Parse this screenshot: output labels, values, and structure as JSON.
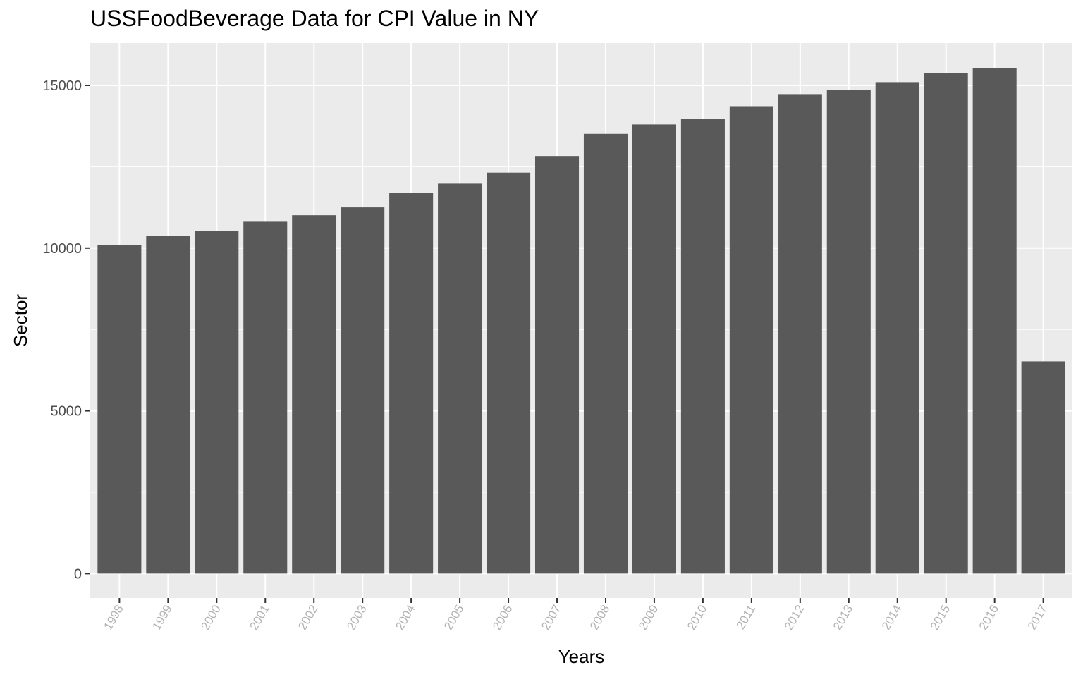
{
  "chart_data": {
    "type": "bar",
    "title": "USSFoodBeverage Data for CPI Value in NY",
    "xlabel": "Years",
    "ylabel": "Sector",
    "categories": [
      "1998",
      "1999",
      "2000",
      "2001",
      "2002",
      "2003",
      "2004",
      "2005",
      "2006",
      "2007",
      "2008",
      "2009",
      "2010",
      "2011",
      "2012",
      "2013",
      "2014",
      "2015",
      "2016",
      "2017"
    ],
    "values": [
      10100,
      10380,
      10530,
      10810,
      11010,
      11250,
      11690,
      11980,
      12320,
      12830,
      13510,
      13800,
      13960,
      14340,
      14710,
      14860,
      15100,
      15380,
      15520,
      6520
    ],
    "yticks": [
      0,
      5000,
      10000,
      15000
    ],
    "ylim": [
      -750,
      16300
    ],
    "grid": true,
    "legend": "none",
    "colors": {
      "bar": "#595959",
      "panel": "#ebebeb",
      "grid": "#ffffff"
    }
  }
}
